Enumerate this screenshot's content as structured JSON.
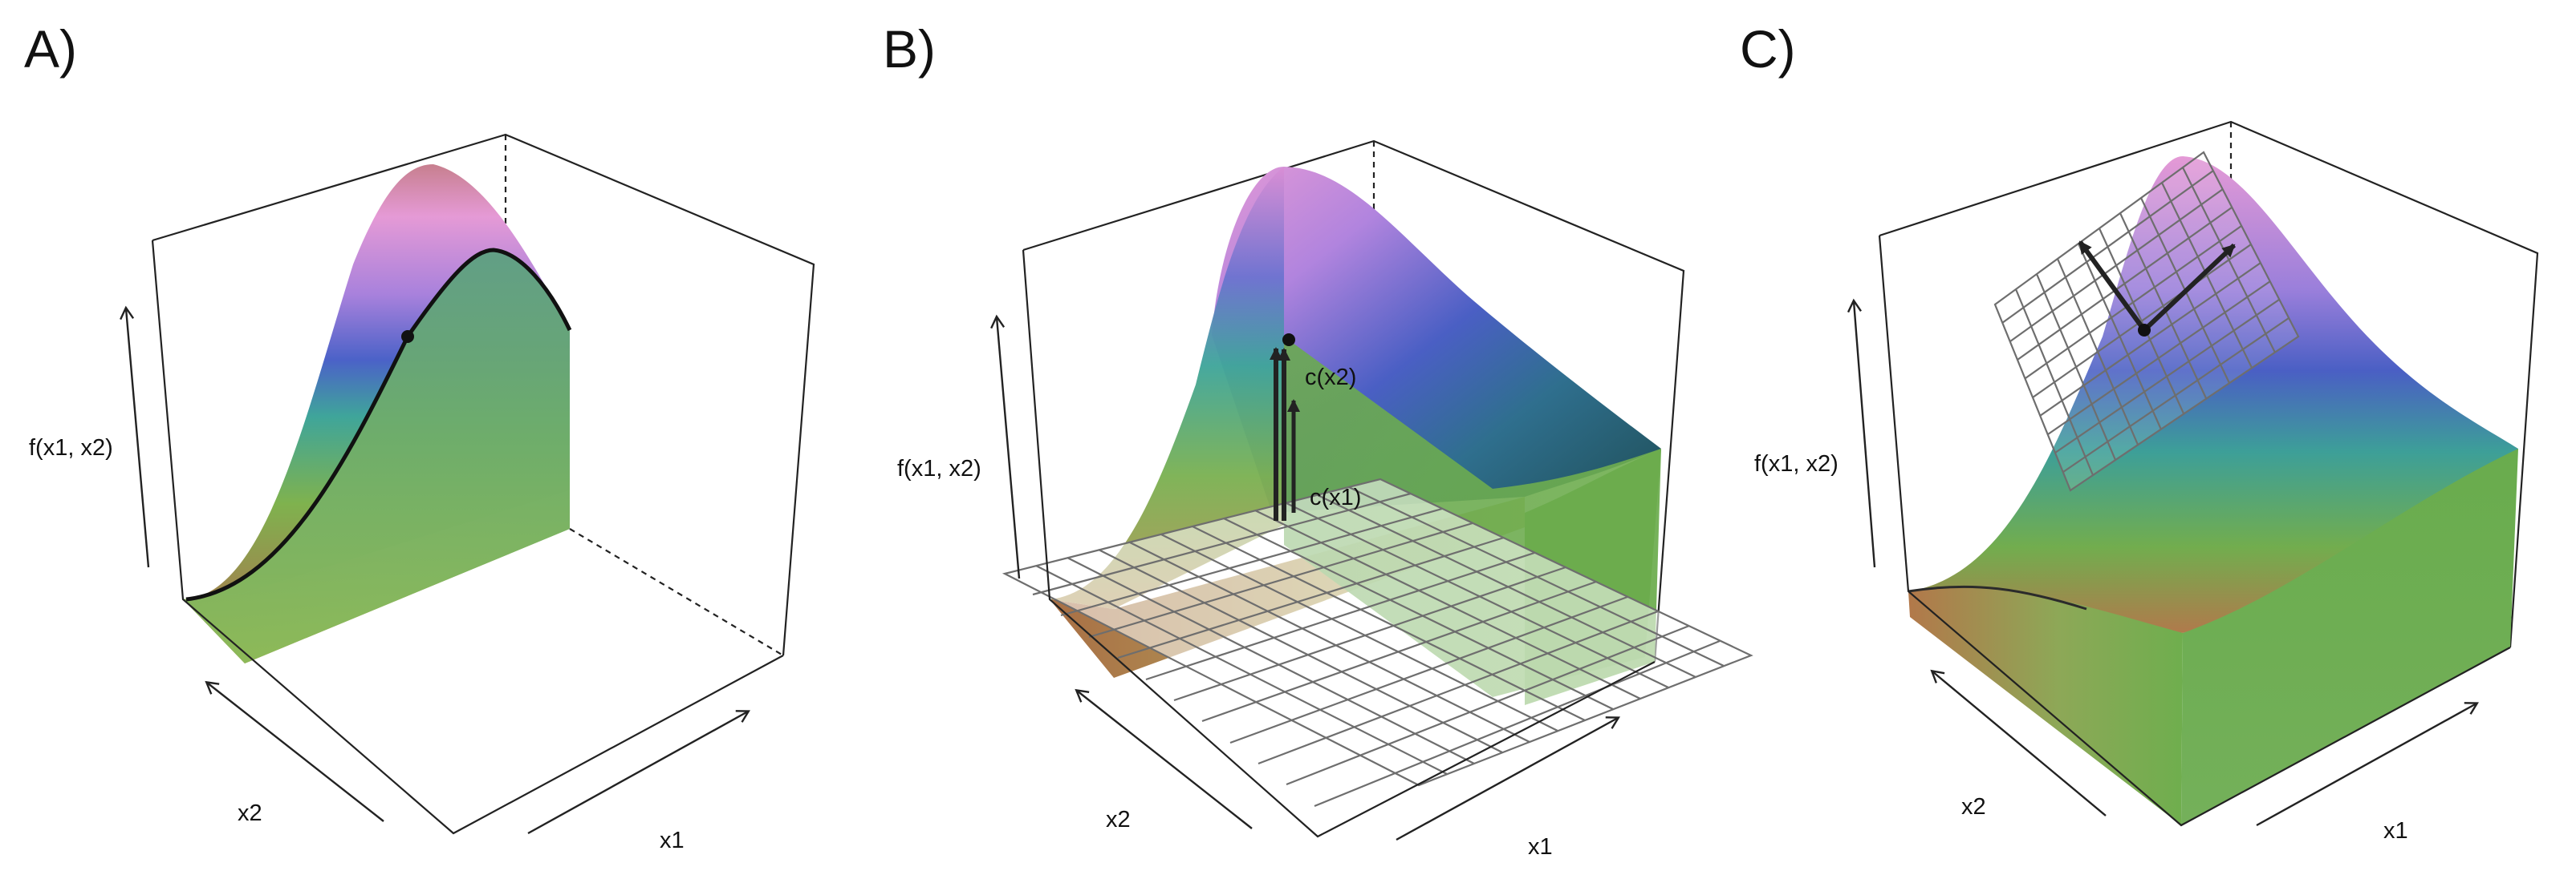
{
  "panels": [
    {
      "letter": "A)",
      "xlabel": "x1",
      "ylabel": "x2",
      "zlabel": "f(x1, x2)"
    },
    {
      "letter": "B)",
      "xlabel": "x1",
      "ylabel": "x2",
      "zlabel": "f(x1, x2)",
      "annotations": [
        "c(x2)",
        "c(x1)"
      ]
    },
    {
      "letter": "C)",
      "xlabel": "x1",
      "ylabel": "x2",
      "zlabel": "f(x1, x2)"
    }
  ],
  "colors": {
    "surface_peak": "#e89bd8",
    "surface_mid": "#4b62c8",
    "surface_teal": "#3fa59a",
    "surface_green": "#6fae4e",
    "surface_low": "#c78a5a",
    "grid": "#6e6e6e"
  }
}
